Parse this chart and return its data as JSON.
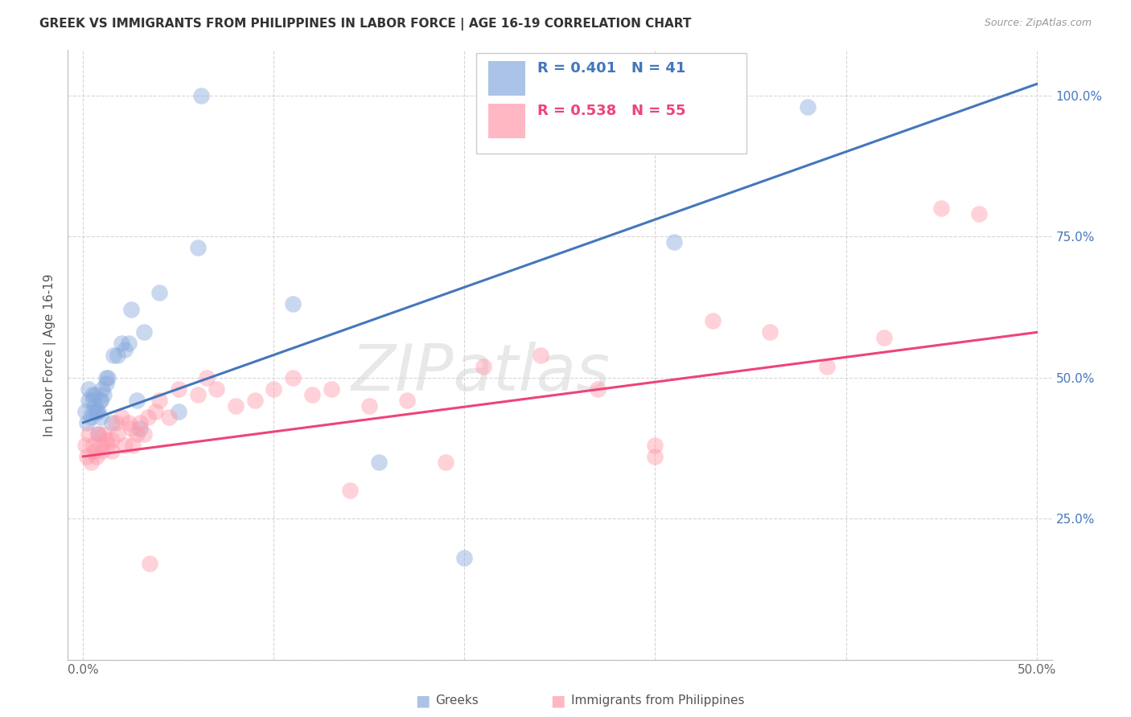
{
  "title": "GREEK VS IMMIGRANTS FROM PHILIPPINES IN LABOR FORCE | AGE 16-19 CORRELATION CHART",
  "source": "Source: ZipAtlas.com",
  "ylabel": "In Labor Force | Age 16-19",
  "blue_color": "#88AADD",
  "pink_color": "#FF99AA",
  "blue_line_color": "#4477BB",
  "pink_line_color": "#EE4477",
  "blue_text_color": "#4477BB",
  "pink_text_color": "#EE4477",
  "ytick_color": "#4477BB",
  "R_blue": 0.401,
  "N_blue": 41,
  "R_pink": 0.538,
  "N_pink": 55,
  "blue_x": [
    0.001,
    0.002,
    0.003,
    0.003,
    0.004,
    0.005,
    0.005,
    0.006,
    0.006,
    0.007,
    0.008,
    0.008,
    0.009,
    0.009,
    0.01,
    0.011,
    0.012,
    0.013,
    0.015,
    0.016,
    0.018,
    0.02,
    0.022,
    0.024,
    0.025,
    0.028,
    0.03,
    0.032,
    0.04,
    0.06,
    0.11,
    0.155,
    0.2,
    0.31,
    0.38,
    0.005,
    0.007,
    0.009,
    0.012,
    0.05,
    0.062
  ],
  "blue_y": [
    0.44,
    0.42,
    0.46,
    0.48,
    0.43,
    0.46,
    0.44,
    0.45,
    0.47,
    0.44,
    0.4,
    0.44,
    0.43,
    0.46,
    0.48,
    0.47,
    0.49,
    0.5,
    0.42,
    0.54,
    0.54,
    0.56,
    0.55,
    0.56,
    0.62,
    0.46,
    0.41,
    0.58,
    0.65,
    0.73,
    0.63,
    0.35,
    0.18,
    0.74,
    0.98,
    0.47,
    0.44,
    0.46,
    0.5,
    0.44,
    1.0
  ],
  "pink_x": [
    0.001,
    0.002,
    0.003,
    0.004,
    0.005,
    0.006,
    0.007,
    0.008,
    0.009,
    0.01,
    0.011,
    0.012,
    0.013,
    0.015,
    0.017,
    0.018,
    0.02,
    0.022,
    0.024,
    0.026,
    0.028,
    0.03,
    0.032,
    0.034,
    0.038,
    0.04,
    0.045,
    0.05,
    0.06,
    0.065,
    0.07,
    0.08,
    0.09,
    0.1,
    0.11,
    0.12,
    0.13,
    0.14,
    0.15,
    0.17,
    0.19,
    0.21,
    0.24,
    0.27,
    0.3,
    0.33,
    0.36,
    0.39,
    0.42,
    0.45,
    0.015,
    0.025,
    0.035,
    0.3,
    0.47
  ],
  "pink_y": [
    0.38,
    0.36,
    0.4,
    0.35,
    0.38,
    0.37,
    0.36,
    0.4,
    0.38,
    0.37,
    0.4,
    0.39,
    0.38,
    0.39,
    0.42,
    0.4,
    0.43,
    0.38,
    0.42,
    0.38,
    0.4,
    0.42,
    0.4,
    0.43,
    0.44,
    0.46,
    0.43,
    0.48,
    0.47,
    0.5,
    0.48,
    0.45,
    0.46,
    0.48,
    0.5,
    0.47,
    0.48,
    0.3,
    0.45,
    0.46,
    0.35,
    0.52,
    0.54,
    0.48,
    0.38,
    0.6,
    0.58,
    0.52,
    0.57,
    0.8,
    0.37,
    0.41,
    0.17,
    0.36,
    0.79
  ],
  "watermark": "ZIPatlas",
  "blue_intercept": 0.42,
  "blue_slope": 1.2,
  "pink_intercept": 0.36,
  "pink_slope": 0.44
}
